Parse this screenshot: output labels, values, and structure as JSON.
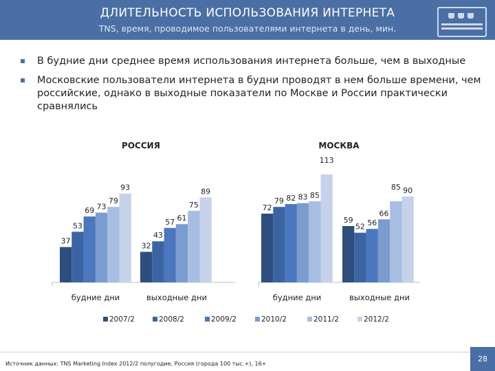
{
  "header": {
    "title": "ДЛИТЕЛЬНОСТЬ ИСПОЛЬЗОВАНИЯ ИНТЕРНЕТА",
    "subtitle": "TNS, время, проводимое пользователями интернета в день, мин.",
    "logo_icon": "tns-logo-icon"
  },
  "bullets": [
    " В будние дни среднее время использования интернета больше, чем в выходные",
    "Московские пользователи интернета в будни проводят в нем больше времени, чем российские, однако в выходные показатели по Москве и России практически сравнялись"
  ],
  "chart_data": {
    "type": "bar",
    "series_names": [
      "2007/2",
      "2008/2",
      "2009/2",
      "2010/2",
      "2011/2",
      "2012/2"
    ],
    "colors": [
      "#2e4f7e",
      "#3b64a3",
      "#4a77bd",
      "#7b9cce",
      "#a8bde2",
      "#c5d2ea"
    ],
    "groups": [
      "будние дни",
      "выходные дни"
    ],
    "ylim": [
      0,
      120
    ],
    "panels": [
      {
        "title": "РОССИЯ",
        "values": [
          [
            37,
            53,
            69,
            73,
            79,
            93
          ],
          [
            32,
            43,
            57,
            61,
            75,
            89
          ]
        ]
      },
      {
        "title": "МОСКВА",
        "values": [
          [
            72,
            79,
            82,
            83,
            85,
            113
          ],
          [
            59,
            52,
            56,
            66,
            85,
            90
          ]
        ]
      }
    ]
  },
  "footer": {
    "source": "Источник данных: TNS Marketing Index 2012/2 полугодие, Россия (города 100 тыс.+), 16+",
    "page": "28"
  }
}
